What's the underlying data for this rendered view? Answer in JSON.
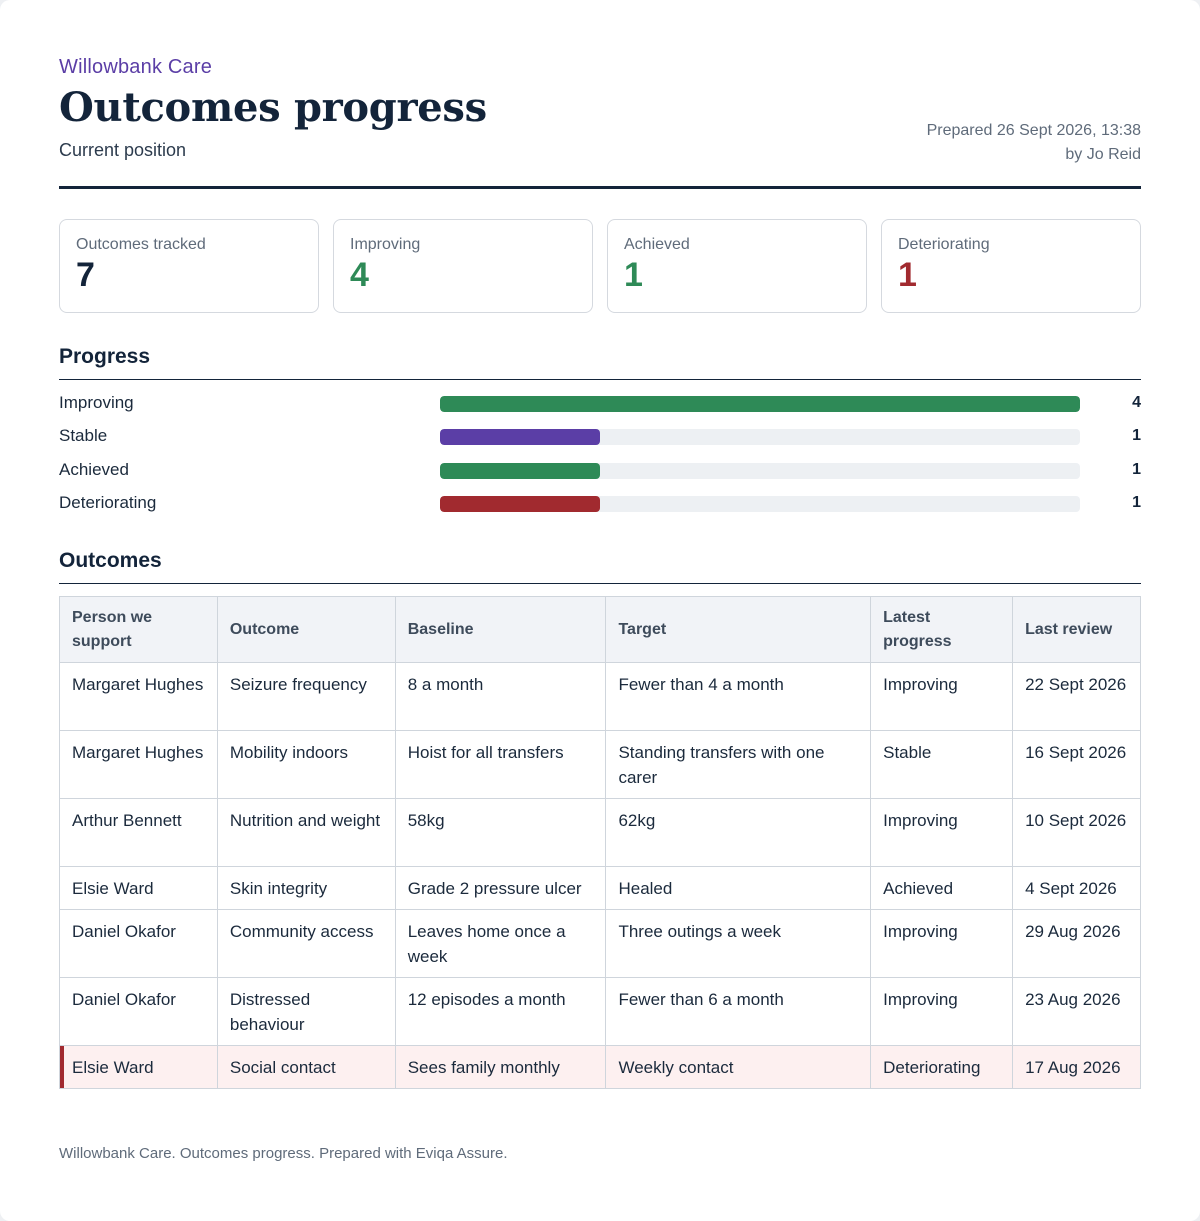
{
  "header": {
    "org": "Willowbank Care",
    "title": "Outcomes progress",
    "subtitle": "Current position",
    "prepared_line": "Prepared 26 Sept 2026, 13:38",
    "by_line": "by Jo Reid"
  },
  "summary": [
    {
      "label": "Outcomes tracked",
      "value": "7",
      "tone": "navy"
    },
    {
      "label": "Improving",
      "value": "4",
      "tone": "green"
    },
    {
      "label": "Achieved",
      "value": "1",
      "tone": "green"
    },
    {
      "label": "Deteriorating",
      "value": "1",
      "tone": "red"
    }
  ],
  "progress": {
    "heading": "Progress",
    "max": 4,
    "rows": [
      {
        "label": "Improving",
        "count": 4,
        "color": "#2e8a57"
      },
      {
        "label": "Stable",
        "count": 1,
        "color": "#5b3ea6"
      },
      {
        "label": "Achieved",
        "count": 1,
        "color": "#2e8a57"
      },
      {
        "label": "Deteriorating",
        "count": 1,
        "color": "#a12a2f"
      }
    ]
  },
  "outcomes": {
    "heading": "Outcomes",
    "columns": [
      "Person we support",
      "Outcome",
      "Baseline",
      "Target",
      "Latest progress",
      "Last review"
    ],
    "rows": [
      [
        "Margaret Hughes",
        "Seizure frequency",
        "8 a month",
        "Fewer than 4 a month",
        "Improving",
        "22 Sept 2026"
      ],
      [
        "Margaret Hughes",
        "Mobility indoors",
        "Hoist for all transfers",
        "Standing transfers with one carer",
        "Stable",
        "16 Sept 2026"
      ],
      [
        "Arthur Bennett",
        "Nutrition and weight",
        "58kg",
        "62kg",
        "Improving",
        "10 Sept 2026"
      ],
      [
        "Elsie Ward",
        "Skin integrity",
        "Grade 2 pressure ulcer",
        "Healed",
        "Achieved",
        "4 Sept 2026"
      ],
      [
        "Daniel Okafor",
        "Community access",
        "Leaves home once a week",
        "Three outings a week",
        "Improving",
        "29 Aug 2026"
      ],
      [
        "Daniel Okafor",
        "Distressed behaviour",
        "12 episodes a month",
        "Fewer than 6 a month",
        "Improving",
        "23 Aug 2026"
      ],
      [
        "Elsie Ward",
        "Social contact",
        "Sees family monthly",
        "Weekly contact",
        "Deteriorating",
        "17 Aug 2026"
      ]
    ]
  },
  "footer": "Willowbank Care. Outcomes progress. Prepared with Eviqa Assure."
}
